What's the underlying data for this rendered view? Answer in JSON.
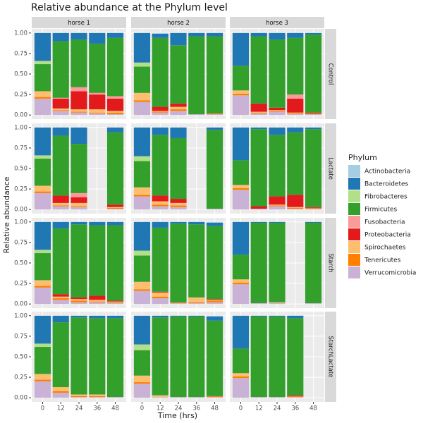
{
  "chart_data": {
    "type": "bar",
    "title": "Relative abundance at the  Phylum  level",
    "xlabel": "Time (hrs)",
    "ylabel": "Relative abundance",
    "legend_title": "Phylum",
    "columns": [
      "horse 1",
      "horse 2",
      "horse 3"
    ],
    "categories": [
      "0",
      "12",
      "24",
      "36",
      "48"
    ],
    "ylim": [
      0,
      1
    ],
    "yticks": [
      {
        "value": 0,
        "label": "0.00"
      },
      {
        "value": 0.25,
        "label": "0.25"
      },
      {
        "value": 0.5,
        "label": "0.50"
      },
      {
        "value": 0.75,
        "label": "0.75"
      },
      {
        "value": 1,
        "label": "1.00"
      }
    ],
    "grid": true,
    "series": [
      {
        "name": "Actinobacteria",
        "color": "#a6cee3"
      },
      {
        "name": "Bacteroidetes",
        "color": "#1f78b4"
      },
      {
        "name": "Fibrobacteres",
        "color": "#b2df8a"
      },
      {
        "name": "Firmicutes",
        "color": "#33a02c"
      },
      {
        "name": "Fusobacteria",
        "color": "#fb9a99"
      },
      {
        "name": "Proteobacteria",
        "color": "#e31a1c"
      },
      {
        "name": "Spirochaetes",
        "color": "#fdbf6f"
      },
      {
        "name": "Tenericutes",
        "color": "#ff7f00"
      },
      {
        "name": "Verrucomicrobia",
        "color": "#cab2d6"
      }
    ],
    "facets": [
      {
        "name": "Control",
        "panels": [
          [
            [
              0,
              0.34,
              0.04,
              0.33,
              0,
              0,
              0.07,
              0.02,
              0.2
            ],
            [
              0,
              0.1,
              0,
              0.69,
              0.01,
              0.12,
              0.02,
              0.01,
              0.05
            ],
            [
              0,
              0.08,
              0,
              0.58,
              0.05,
              0.22,
              0.03,
              0.01,
              0.03
            ],
            [
              0,
              0.13,
              0,
              0.6,
              0.02,
              0.18,
              0.04,
              0.01,
              0.02
            ],
            [
              0,
              0.06,
              0,
              0.71,
              0.03,
              0.15,
              0.02,
              0.02,
              0.01
            ]
          ],
          [
            [
              0,
              0.36,
              0.05,
              0.32,
              0,
              0,
              0.09,
              0.02,
              0.16
            ],
            [
              0.01,
              0.05,
              0,
              0.84,
              0,
              0.05,
              0.01,
              0.01,
              0.03
            ],
            [
              0,
              0.15,
              0,
              0.71,
              0,
              0.04,
              0.03,
              0.02,
              0.05
            ],
            [
              0,
              0.04,
              0,
              0.95,
              0,
              0,
              0,
              0,
              0.01
            ],
            [
              0,
              0.04,
              0,
              0.94,
              0,
              0,
              0,
              0.01,
              0.01
            ]
          ],
          [
            [
              0,
              0.4,
              0,
              0.3,
              0,
              0,
              0.04,
              0.02,
              0.24
            ],
            [
              0,
              0.04,
              0,
              0.82,
              0,
              0.1,
              0.01,
              0.01,
              0.02
            ],
            [
              0,
              0.08,
              0,
              0.83,
              0,
              0.03,
              0.01,
              0.01,
              0.04
            ],
            [
              0,
              0.06,
              0,
              0.69,
              0.05,
              0.17,
              0.01,
              0.01,
              0.01
            ],
            [
              0,
              0.02,
              0,
              0.95,
              0,
              0.01,
              0,
              0.01,
              0.01
            ]
          ]
        ]
      },
      {
        "name": "Lactate",
        "panels": [
          [
            [
              0,
              0.34,
              0.04,
              0.33,
              0,
              0,
              0.07,
              0.02,
              0.2
            ],
            [
              0,
              0.1,
              0,
              0.73,
              0,
              0.09,
              0.03,
              0.01,
              0.04
            ],
            [
              0,
              0.2,
              0,
              0.6,
              0.05,
              0.07,
              0.04,
              0.01,
              0.03
            ],
            null,
            [
              0,
              0.06,
              0,
              0.88,
              0,
              0.03,
              0.01,
              0.01,
              0.01
            ]
          ],
          [
            [
              0,
              0.35,
              0.06,
              0.32,
              0,
              0,
              0.09,
              0.02,
              0.16
            ],
            [
              0,
              0.09,
              0,
              0.74,
              0,
              0.07,
              0.04,
              0.02,
              0.04
            ],
            [
              0,
              0.13,
              0,
              0.74,
              0,
              0.05,
              0.03,
              0.02,
              0.03
            ],
            null,
            [
              0,
              0.03,
              0,
              0.96,
              0,
              0,
              0,
              0,
              0.01
            ]
          ],
          [
            [
              0,
              0.4,
              0,
              0.3,
              0,
              0,
              0.04,
              0.02,
              0.24
            ],
            [
              0,
              0.02,
              0,
              0.94,
              0,
              0.03,
              0,
              0,
              0.01
            ],
            [
              0,
              0.09,
              0,
              0.75,
              0,
              0.1,
              0.01,
              0.01,
              0.04
            ],
            [
              0,
              0.06,
              0,
              0.76,
              0,
              0.15,
              0.01,
              0.01,
              0.01
            ],
            [
              0,
              0.02,
              0,
              0.95,
              0,
              0.01,
              0,
              0.01,
              0.01
            ]
          ]
        ]
      },
      {
        "name": "Starch",
        "panels": [
          [
            [
              0,
              0.34,
              0.04,
              0.33,
              0,
              0,
              0.07,
              0.02,
              0.2
            ],
            [
              0,
              0.08,
              0,
              0.8,
              0,
              0.03,
              0.02,
              0.02,
              0.05
            ],
            [
              0,
              0.03,
              0,
              0.89,
              0,
              0.02,
              0.02,
              0.02,
              0.02
            ],
            [
              0,
              0.04,
              0,
              0.86,
              0,
              0.05,
              0.02,
              0.01,
              0.02
            ],
            [
              0,
              0.04,
              0,
              0.92,
              0,
              0.01,
              0.01,
              0.01,
              0.01
            ]
          ],
          [
            [
              0,
              0.35,
              0.06,
              0.32,
              0,
              0,
              0.09,
              0.02,
              0.16
            ],
            [
              0,
              0.07,
              0,
              0.78,
              0,
              0.01,
              0.05,
              0.02,
              0.07
            ],
            [
              0,
              0.02,
              0,
              0.96,
              0,
              0,
              0,
              0.01,
              0.01
            ],
            [
              0,
              0.03,
              0,
              0.89,
              0,
              0,
              0.06,
              0.01,
              0.01
            ],
            [
              0.01,
              0.04,
              0,
              0.89,
              0,
              0.01,
              0.01,
              0.02,
              0.02
            ]
          ],
          [
            [
              0,
              0.4,
              0,
              0.3,
              0,
              0,
              0.04,
              0.02,
              0.24
            ],
            [
              0,
              0.01,
              0,
              0.98,
              0,
              0,
              0,
              0,
              0.01
            ],
            [
              0,
              0.01,
              0,
              0.97,
              0,
              0,
              0.01,
              0,
              0.01
            ],
            null,
            [
              0,
              0.01,
              0,
              0.98,
              0,
              0,
              0,
              0,
              0.01
            ]
          ]
        ]
      },
      {
        "name": "StarchLactate",
        "panels": [
          [
            [
              0,
              0.34,
              0.04,
              0.33,
              0,
              0,
              0.07,
              0.02,
              0.2
            ],
            [
              0,
              0.08,
              0,
              0.79,
              0,
              0,
              0.05,
              0.02,
              0.06
            ],
            [
              0,
              0.02,
              0,
              0.94,
              0,
              0,
              0.02,
              0.01,
              0.01
            ],
            [
              0,
              0.03,
              0,
              0.93,
              0,
              0,
              0.02,
              0.01,
              0.01
            ],
            [
              0,
              0.03,
              0,
              0.96,
              0,
              0,
              0,
              0,
              0.01
            ]
          ],
          [
            [
              0,
              0.35,
              0.07,
              0.31,
              0,
              0,
              0.08,
              0.02,
              0.17
            ],
            [
              0,
              0.02,
              0,
              0.95,
              0,
              0,
              0.02,
              0,
              0.01
            ],
            [
              0,
              0.01,
              0,
              0.98,
              0,
              0,
              0,
              0,
              0.01
            ],
            [
              0,
              0.01,
              0,
              0.98,
              0,
              0,
              0,
              0,
              0.01
            ],
            [
              0.01,
              0.05,
              0,
              0.92,
              0,
              0,
              0,
              0.01,
              0.01
            ]
          ],
          [
            [
              0,
              0.4,
              0,
              0.3,
              0,
              0,
              0.04,
              0.02,
              0.24
            ],
            [
              0,
              0.01,
              0,
              0.98,
              0,
              0,
              0,
              0,
              0.01
            ],
            [
              0,
              0.01,
              0,
              0.98,
              0,
              0,
              0,
              0,
              0.01
            ],
            [
              0,
              0.03,
              0,
              0.94,
              0,
              0.01,
              0,
              0.01,
              0.01
            ],
            null
          ]
        ]
      }
    ]
  }
}
